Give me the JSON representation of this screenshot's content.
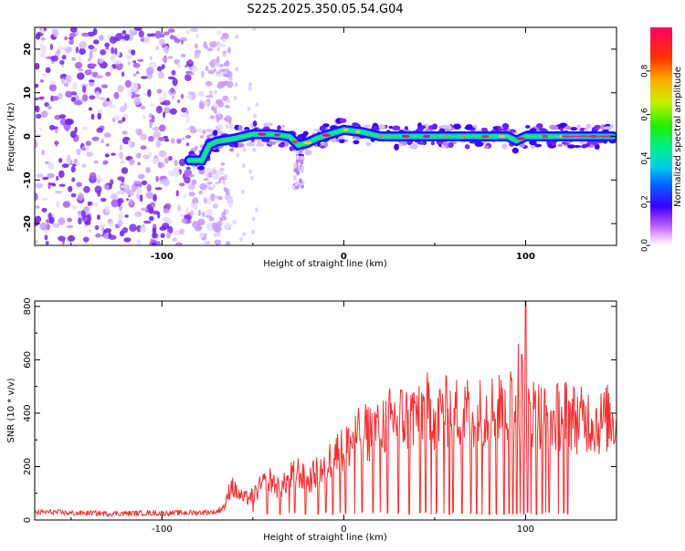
{
  "title": "S225.2025.350.05.54.G04",
  "colors": {
    "snr_line": "#ee3333",
    "frame": "#000000",
    "scatter": "#7b2cf0"
  },
  "colorbar": {
    "label": "Normalized spectral amplitude",
    "ticks": [
      "0.0",
      "0.2",
      "0.4",
      "0.6",
      "0.8"
    ],
    "tick_values": [
      0.0,
      0.2,
      0.4,
      0.6,
      0.8
    ],
    "range": [
      0,
      1
    ]
  },
  "chart_data": [
    {
      "type": "heatmap",
      "name": "spectrogram",
      "xlabel": "Height of straight line (km)",
      "ylabel": "Frequency (Hz)",
      "xlim": [
        -170,
        150
      ],
      "ylim": [
        -25,
        25
      ],
      "xticks": [
        -100,
        0,
        100
      ],
      "xtick_labels": [
        "-100",
        "0",
        "100"
      ],
      "yticks": [
        -20,
        -10,
        0,
        10,
        20
      ],
      "ytick_labels": [
        "-20",
        "-10",
        "0",
        "10",
        "20"
      ],
      "noise_region_x": [
        -170,
        -72
      ],
      "ridge": {
        "x": [
          -85,
          -78,
          -74,
          -70,
          -60,
          -50,
          -40,
          -30,
          -25,
          -20,
          -15,
          -10,
          0,
          10,
          20,
          30,
          40,
          50,
          60,
          70,
          80,
          90,
          95,
          100,
          110,
          120,
          130,
          140,
          148
        ],
        "freq": [
          -5.5,
          -5.5,
          -2,
          -1.2,
          -0.5,
          0.5,
          0.5,
          0,
          -2,
          -1.5,
          -0.5,
          0.2,
          1.5,
          1,
          0,
          0,
          0,
          0,
          0,
          0,
          0,
          0,
          -1,
          0,
          0,
          0,
          0,
          0,
          0
        ]
      }
    },
    {
      "type": "line",
      "name": "snr",
      "xlabel": "Height of straight line (km)",
      "ylabel": "SNR (10 * v/v)",
      "xlim": [
        -170,
        150
      ],
      "ylim": [
        0,
        820
      ],
      "xticks": [
        -100,
        0,
        100
      ],
      "xtick_labels": [
        "-100",
        "0",
        "100"
      ],
      "yticks": [
        0,
        200,
        400,
        600,
        800
      ],
      "ytick_labels": [
        "0",
        "200",
        "400",
        "600",
        "800"
      ],
      "x": [
        -170,
        -160,
        -150,
        -140,
        -130,
        -120,
        -110,
        -100,
        -90,
        -80,
        -70,
        -65,
        -62,
        -60,
        -55,
        -50,
        -45,
        -40,
        -35,
        -30,
        -25,
        -20,
        -15,
        -10,
        -5,
        0,
        5,
        10,
        15,
        20,
        25,
        30,
        35,
        40,
        45,
        50,
        55,
        60,
        65,
        70,
        75,
        80,
        85,
        90,
        95,
        100,
        105,
        110,
        115,
        120,
        125,
        130,
        135,
        140,
        145,
        150
      ],
      "y": [
        28,
        30,
        25,
        26,
        24,
        25,
        26,
        25,
        27,
        28,
        30,
        55,
        140,
        110,
        80,
        90,
        130,
        150,
        110,
        160,
        180,
        140,
        180,
        200,
        250,
        260,
        300,
        320,
        330,
        360,
        370,
        385,
        380,
        400,
        420,
        390,
        400,
        410,
        400,
        410,
        400,
        410,
        420,
        420,
        430,
        430,
        400,
        390,
        370,
        400,
        390,
        370,
        380,
        360,
        380,
        380
      ],
      "spikes_up": [
        {
          "x": 100,
          "y": 820
        },
        {
          "x": 96,
          "y": 660
        },
        {
          "x": 98,
          "y": 620
        }
      ],
      "dropouts_x": [
        -50,
        -42,
        -35,
        -30,
        -27,
        -21,
        -14,
        -10,
        -6,
        -2,
        1,
        6,
        10,
        16,
        20,
        24,
        30,
        36,
        42,
        45,
        48,
        51,
        55,
        58,
        60,
        65,
        70,
        73,
        76,
        80,
        84,
        88,
        91,
        93,
        95,
        97,
        99,
        101,
        103,
        106,
        109,
        111,
        113,
        118,
        121,
        123
      ]
    }
  ]
}
